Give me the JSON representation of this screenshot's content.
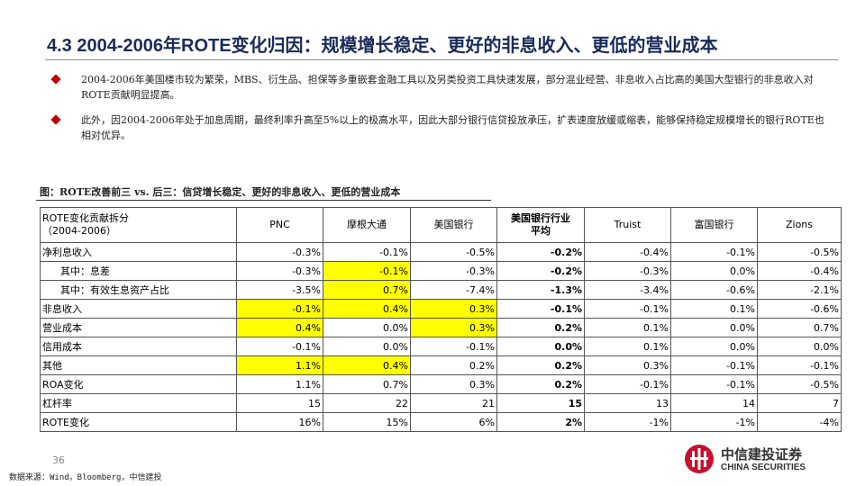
{
  "header": {
    "title": "4.3 2004-2006年ROTE变化归因：规模增长稳定、更好的非息收入、更低的营业成本"
  },
  "bullets": [
    "2004-2006年美国楼市较为繁荣，MBS、衍生品、担保等多重嵌套金融工具以及另类投资工具快速发展，部分混业经营、非息收入占比高的美国大型银行的非息收入对ROTE贡献明显提高。",
    "此外，因2004-2006年处于加息周期，最终利率升高至5%以上的极高水平，因此大部分银行信贷投放承压，扩表速度放缓或缩表，能够保持稳定规模增长的银行ROTE也相对优异。"
  ],
  "figure_caption": "图：ROTE改善前三 vs. 后三：信贷增长稳定、更好的非息收入、更低的营业成本",
  "table": {
    "columns": [
      "ROTE变化贡献拆分\n（2004-2006）",
      "PNC",
      "摩根大通",
      "美国银行",
      "美国银行行业\n平均",
      "Truist",
      "富国银行",
      "Zions"
    ],
    "bold_column": 4,
    "highlight_color": "#ffff00",
    "rows": [
      {
        "label": "净利息收入",
        "cells": [
          "-0.3%",
          "-0.1%",
          "-0.5%",
          "-0.2%",
          "-0.4%",
          "-0.1%",
          "-0.5%"
        ]
      },
      {
        "label": "其中：息差",
        "indent": true,
        "cells": [
          "-0.3%",
          "-0.1%",
          "-0.3%",
          "-0.2%",
          "-0.3%",
          "0.0%",
          "-0.4%"
        ],
        "highlight": [
          1
        ]
      },
      {
        "label": "其中：有效生息资产占比",
        "indent": true,
        "cells": [
          "-3.5%",
          "0.7%",
          "-7.4%",
          "-1.3%",
          "-3.4%",
          "-0.6%",
          "-2.1%"
        ],
        "highlight": [
          1
        ]
      },
      {
        "label": "非息收入",
        "cells": [
          "-0.1%",
          "0.4%",
          "0.3%",
          "-0.1%",
          "-0.1%",
          "0.1%",
          "-0.6%"
        ],
        "highlight": [
          0,
          1,
          2
        ]
      },
      {
        "label": "营业成本",
        "cells": [
          "0.4%",
          "0.0%",
          "0.3%",
          "0.2%",
          "0.1%",
          "0.0%",
          "0.7%"
        ],
        "highlight": [
          0,
          2
        ]
      },
      {
        "label": "信用成本",
        "cells": [
          "-0.1%",
          "0.0%",
          "-0.1%",
          "0.0%",
          "0.1%",
          "0.0%",
          "0.0%"
        ]
      },
      {
        "label": "其他",
        "cells": [
          "1.1%",
          "0.4%",
          "0.2%",
          "0.2%",
          "0.3%",
          "-0.1%",
          "-0.1%"
        ],
        "highlight": [
          0,
          1
        ]
      },
      {
        "label": "ROA变化",
        "cells": [
          "1.1%",
          "0.7%",
          "0.3%",
          "0.2%",
          "-0.1%",
          "-0.1%",
          "-0.5%"
        ]
      },
      {
        "label": "杠杆率",
        "cells": [
          "15",
          "22",
          "21",
          "15",
          "13",
          "14",
          "7"
        ]
      },
      {
        "label": "ROTE变化",
        "cells": [
          "16%",
          "15%",
          "6%",
          "2%",
          "-1%",
          "-1%",
          "-4%"
        ]
      }
    ]
  },
  "footer": {
    "page_number": "36",
    "source": "数据来源：Wind，Bloomberg，中信建投",
    "logo_cn": "中信建投证券",
    "logo_en": "CHINA SECURITIES"
  }
}
